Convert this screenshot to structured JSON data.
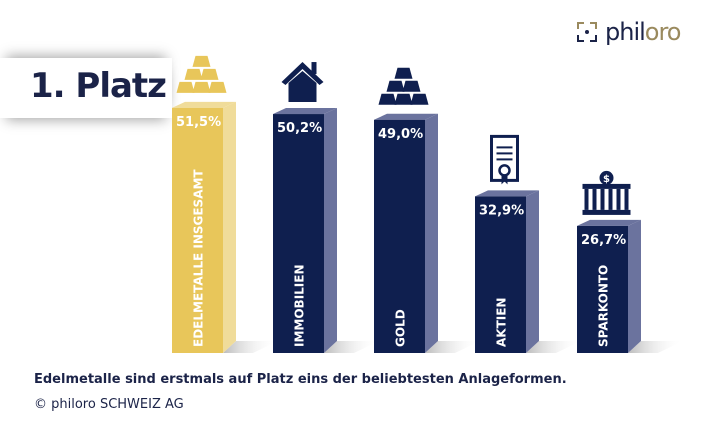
{
  "title": "1. Platz",
  "logo": {
    "text_a": "phil",
    "text_b": "oro"
  },
  "caption": "Edelmetalle sind erstmals auf Platz eins der beliebtesten Anlageformen.",
  "copyright": "© philoro SCHWEIZ AG",
  "colors": {
    "navy": "#0f1f4f",
    "navy_side": "#6b739e",
    "gold": "#e8c65a",
    "gold_side": "#f0dc9a"
  },
  "chart_data": {
    "type": "bar",
    "categories": [
      "EDELMETALLE INSGESAMT",
      "IMMOBILIEN",
      "GOLD",
      "AKTIEN",
      "SPARKONTO"
    ],
    "values": [
      51.5,
      50.2,
      49.0,
      32.9,
      26.7
    ],
    "value_labels": [
      "51,5%",
      "50,2%",
      "49,0%",
      "32,9%",
      "26,7%"
    ],
    "icons": [
      "gold-bars-icon",
      "house-icon",
      "gold-bars-icon",
      "certificate-icon",
      "bank-icon"
    ],
    "highlight_index": 0,
    "ylim": [
      0,
      55
    ],
    "grid": false
  }
}
